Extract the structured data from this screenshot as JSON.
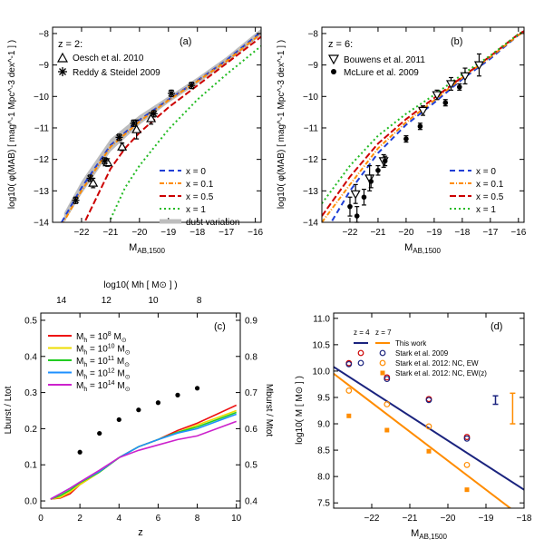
{
  "chart_data": [
    {
      "id": "a",
      "type": "line",
      "panel_label": "(a)",
      "redshift_label": "z = 2:",
      "xlabel_main": "M",
      "xlabel_sub": "AB,1500",
      "ylabel": "log10( φ(MAB) [ mag^-1 Mpc^-3 dex^-1 ] )",
      "xlim": [
        -23,
        -15.8
      ],
      "ylim": [
        -14,
        -7.8
      ],
      "x_ticks": [
        -22,
        -21,
        -20,
        -19,
        -18,
        -17,
        -16
      ],
      "y_ticks": [
        -14,
        -13,
        -12,
        -11,
        -10,
        -9,
        -8
      ],
      "legend_position": "bottom-right",
      "data_legend": [
        {
          "symbol": "triangle",
          "label": "Oesch et al. 2010"
        },
        {
          "symbol": "star",
          "label": "Reddy & Steidel 2009"
        }
      ],
      "series": [
        {
          "name": "x = 0",
          "color": "#1f3fd6",
          "dash": "dash",
          "x": [
            -23,
            -22,
            -21,
            -20,
            -19,
            -18,
            -17,
            -16,
            -15.8
          ],
          "y": [
            -14.5,
            -12.9,
            -11.55,
            -10.75,
            -10.1,
            -9.5,
            -8.85,
            -8.1,
            -7.95
          ]
        },
        {
          "name": "x = 0.1",
          "color": "#ff8c00",
          "dash": "dashdot",
          "x": [
            -23,
            -22,
            -21,
            -20,
            -19,
            -18,
            -17,
            -16,
            -15.8
          ],
          "y": [
            -14.6,
            -13.0,
            -11.6,
            -10.8,
            -10.12,
            -9.52,
            -8.88,
            -8.15,
            -8.0
          ]
        },
        {
          "name": "x = 0.5",
          "color": "#cc0000",
          "dash": "longdash",
          "x": [
            -22,
            -21,
            -20.5,
            -20,
            -19,
            -18,
            -17,
            -16,
            -15.8
          ],
          "y": [
            -14.2,
            -12.3,
            -11.65,
            -11.15,
            -10.35,
            -9.65,
            -8.95,
            -8.25,
            -8.1
          ]
        },
        {
          "name": "x = 1",
          "color": "#22bb22",
          "dash": "dot",
          "x": [
            -21,
            -20.5,
            -20,
            -19,
            -18,
            -17,
            -16,
            -15.8
          ],
          "y": [
            -13.9,
            -12.9,
            -12.2,
            -11.05,
            -10.1,
            -9.3,
            -8.55,
            -8.4
          ]
        },
        {
          "name": "dust variation",
          "color": "#bdbdbd",
          "dash": "band"
        }
      ],
      "band": {
        "x": [
          -22.6,
          -22,
          -21,
          -20,
          -19,
          -18,
          -17,
          -16,
          -15.8
        ],
        "lo": [
          -14.0,
          -13.1,
          -11.75,
          -10.9,
          -10.2,
          -9.6,
          -8.95,
          -8.2,
          -8.05
        ],
        "hi": [
          -13.7,
          -12.7,
          -11.35,
          -10.6,
          -10.0,
          -9.4,
          -8.75,
          -8.0,
          -7.85
        ]
      },
      "points": [
        {
          "set": "Oesch et al. 2010",
          "symbol": "triangle",
          "x": -21.6,
          "y": -12.75,
          "err": 0.15
        },
        {
          "set": "Oesch et al. 2010",
          "symbol": "triangle",
          "x": -21.1,
          "y": -12.1,
          "err": 0.12
        },
        {
          "set": "Oesch et al. 2010",
          "symbol": "triangle",
          "x": -20.6,
          "y": -11.6,
          "err": 0.12
        },
        {
          "set": "Oesch et al. 2010",
          "symbol": "triangle",
          "x": -20.1,
          "y": -11.05,
          "err": 0.3
        },
        {
          "set": "Oesch et al. 2010",
          "symbol": "triangle",
          "x": -19.6,
          "y": -10.7,
          "err": 0.18
        },
        {
          "set": "Reddy & Steidel 2009",
          "symbol": "star",
          "x": -22.2,
          "y": -13.3,
          "err": 0.1
        },
        {
          "set": "Reddy & Steidel 2009",
          "symbol": "star",
          "x": -21.7,
          "y": -12.6,
          "err": 0.1
        },
        {
          "set": "Reddy & Steidel 2009",
          "symbol": "star",
          "x": -21.2,
          "y": -12.05,
          "err": 0.1
        },
        {
          "set": "Reddy & Steidel 2009",
          "symbol": "star",
          "x": -20.7,
          "y": -11.3,
          "err": 0.1
        },
        {
          "set": "Reddy & Steidel 2009",
          "symbol": "star",
          "x": -20.2,
          "y": -10.85,
          "err": 0.1
        },
        {
          "set": "Reddy & Steidel 2009",
          "symbol": "star",
          "x": -19.5,
          "y": -10.55,
          "err": 0.1
        },
        {
          "set": "Reddy & Steidel 2009",
          "symbol": "star",
          "x": -18.9,
          "y": -9.9,
          "err": 0.1
        },
        {
          "set": "Reddy & Steidel 2009",
          "symbol": "star",
          "x": -18.2,
          "y": -9.65,
          "err": 0.1
        }
      ]
    },
    {
      "id": "b",
      "type": "line",
      "panel_label": "(b)",
      "redshift_label": "z = 6:",
      "xlabel_main": "M",
      "xlabel_sub": "AB,1500",
      "ylabel": "log10( φ(MAB) [ mag^-1 Mpc^-3 dex^-1 ] )",
      "xlim": [
        -23,
        -15.8
      ],
      "ylim": [
        -14,
        -7.8
      ],
      "x_ticks": [
        -22,
        -21,
        -20,
        -19,
        -18,
        -17,
        -16
      ],
      "y_ticks": [
        -14,
        -13,
        -12,
        -11,
        -10,
        -9,
        -8
      ],
      "legend_position": "bottom-right",
      "data_legend": [
        {
          "symbol": "triangle-down",
          "label": "Bouwens et al. 2011"
        },
        {
          "symbol": "dot",
          "label": "McLure et al. 2009"
        }
      ],
      "series": [
        {
          "name": "x = 0",
          "color": "#1f3fd6",
          "dash": "dash",
          "x": [
            -22.8,
            -22,
            -21,
            -20,
            -19,
            -18,
            -17,
            -16,
            -15.8
          ],
          "y": [
            -14.2,
            -13.0,
            -11.8,
            -10.9,
            -10.2,
            -9.45,
            -8.8,
            -8.05,
            -7.95
          ]
        },
        {
          "name": "x = 0.1",
          "color": "#ff8c00",
          "dash": "dashdot",
          "x": [
            -23,
            -22,
            -21,
            -20,
            -19,
            -18,
            -17,
            -16,
            -15.8
          ],
          "y": [
            -14.0,
            -12.8,
            -11.65,
            -10.82,
            -10.12,
            -9.4,
            -8.75,
            -8.05,
            -7.95
          ]
        },
        {
          "name": "x = 0.5",
          "color": "#cc0000",
          "dash": "longdash",
          "x": [
            -23,
            -22,
            -21,
            -20,
            -19,
            -18,
            -17,
            -16,
            -15.8
          ],
          "y": [
            -13.8,
            -12.55,
            -11.5,
            -10.72,
            -10.05,
            -9.38,
            -8.72,
            -8.02,
            -7.92
          ]
        },
        {
          "name": "x = 1",
          "color": "#22bb22",
          "dash": "dot",
          "x": [
            -23,
            -22,
            -21,
            -20,
            -19,
            -18,
            -17,
            -16,
            -15.8
          ],
          "y": [
            -13.4,
            -12.2,
            -11.25,
            -10.55,
            -9.95,
            -9.3,
            -8.7,
            -8.02,
            -7.92
          ]
        }
      ],
      "points": [
        {
          "set": "Bouwens et al. 2011",
          "symbol": "triangle-down",
          "x": -21.8,
          "y": -13.1,
          "err": 0.3
        },
        {
          "set": "Bouwens et al. 2011",
          "symbol": "triangle-down",
          "x": -21.3,
          "y": -12.6,
          "err": 0.4
        },
        {
          "set": "Bouwens et al. 2011",
          "symbol": "triangle-down",
          "x": -20.8,
          "y": -12.05,
          "err": 0.2
        },
        {
          "set": "Bouwens et al. 2011",
          "symbol": "triangle-down",
          "x": -19.4,
          "y": -10.45,
          "err": 0.15
        },
        {
          "set": "Bouwens et al. 2011",
          "symbol": "triangle-down",
          "x": -18.9,
          "y": -9.95,
          "err": 0.15
        },
        {
          "set": "Bouwens et al. 2011",
          "symbol": "triangle-down",
          "x": -18.4,
          "y": -9.6,
          "err": 0.2
        },
        {
          "set": "Bouwens et al. 2011",
          "symbol": "triangle-down",
          "x": -17.9,
          "y": -9.35,
          "err": 0.25
        },
        {
          "set": "Bouwens et al. 2011",
          "symbol": "triangle-down",
          "x": -17.4,
          "y": -9.0,
          "err": 0.35
        },
        {
          "set": "McLure et al. 2009",
          "symbol": "dot",
          "x": -22.0,
          "y": -13.5,
          "err": 0.3
        },
        {
          "set": "McLure et al. 2009",
          "symbol": "dot",
          "x": -21.75,
          "y": -13.8,
          "err": 0.3
        },
        {
          "set": "McLure et al. 2009",
          "symbol": "dot",
          "x": -21.5,
          "y": -13.2,
          "err": 0.25
        },
        {
          "set": "McLure et al. 2009",
          "symbol": "dot",
          "x": -21.25,
          "y": -12.7,
          "err": 0.2
        },
        {
          "set": "McLure et al. 2009",
          "symbol": "dot",
          "x": -21.0,
          "y": -12.35,
          "err": 0.15
        },
        {
          "set": "McLure et al. 2009",
          "symbol": "dot",
          "x": -20.75,
          "y": -12.05,
          "err": 0.15
        },
        {
          "set": "McLure et al. 2009",
          "symbol": "dot",
          "x": -20.0,
          "y": -11.35,
          "err": 0.1
        },
        {
          "set": "McLure et al. 2009",
          "symbol": "dot",
          "x": -19.5,
          "y": -10.95,
          "err": 0.1
        },
        {
          "set": "McLure et al. 2009",
          "symbol": "dot",
          "x": -18.6,
          "y": -10.2,
          "err": 0.1
        },
        {
          "set": "McLure et al. 2009",
          "symbol": "dot",
          "x": -18.1,
          "y": -9.7,
          "err": 0.1
        }
      ]
    },
    {
      "id": "c",
      "type": "line",
      "panel_label": "(c)",
      "xlabel": "z",
      "ylabel": "Lburst / Ltot",
      "y2label": "Mburst / Mtot",
      "top_axis_label": "log10( Mh [ M⊙ ] )",
      "xlim": [
        0,
        10.2
      ],
      "ylim": [
        -0.02,
        0.52
      ],
      "y2lim": [
        0.38,
        0.92
      ],
      "x_ticks": [
        0,
        2,
        4,
        6,
        8,
        10
      ],
      "y_ticks": [
        0.0,
        0.1,
        0.2,
        0.3,
        0.4,
        0.5
      ],
      "y2_ticks": [
        0.4,
        0.5,
        0.6,
        0.7,
        0.8,
        0.9
      ],
      "top_ticks": [
        {
          "label": "14",
          "z": 1.05
        },
        {
          "label": "12",
          "z": 3.35
        },
        {
          "label": "10",
          "z": 5.75
        },
        {
          "label": "8",
          "z": 8.1
        }
      ],
      "legend_position": "top-left",
      "series": [
        {
          "name": "Mh = 10^8 M⊙",
          "legend_main": "M",
          "legend_sub": "h",
          "legend_rest": " = 10",
          "legend_sup": "8",
          "color": "#ee1111",
          "x": [
            0.5,
            1,
            1.5,
            2,
            3,
            4,
            5,
            6,
            7,
            8,
            9,
            10
          ],
          "y": [
            0.005,
            0.008,
            0.02,
            0.045,
            0.08,
            0.12,
            0.15,
            0.17,
            0.195,
            0.215,
            0.24,
            0.265
          ]
        },
        {
          "name": "Mh = 10^10 M⊙",
          "legend_main": "M",
          "legend_sub": "h",
          "legend_rest": " = 10",
          "legend_sup": "10",
          "color": "#eedd00",
          "x": [
            0.5,
            1,
            1.5,
            2,
            3,
            4,
            5,
            6,
            7,
            8,
            9,
            10
          ],
          "y": [
            0.005,
            0.01,
            0.025,
            0.045,
            0.08,
            0.12,
            0.15,
            0.17,
            0.19,
            0.21,
            0.23,
            0.25
          ]
        },
        {
          "name": "Mh = 10^11 M⊙",
          "legend_main": "M",
          "legend_sub": "h",
          "legend_rest": " = 10",
          "legend_sup": "11",
          "color": "#22cc22",
          "x": [
            0.5,
            1,
            1.5,
            2,
            3,
            4,
            5,
            6,
            7,
            8,
            9,
            10
          ],
          "y": [
            0.005,
            0.015,
            0.03,
            0.05,
            0.08,
            0.12,
            0.15,
            0.17,
            0.19,
            0.205,
            0.225,
            0.245
          ]
        },
        {
          "name": "Mh = 10^12 M⊙",
          "legend_main": "M",
          "legend_sub": "h",
          "legend_rest": " = 10",
          "legend_sup": "12",
          "color": "#1e90ff",
          "x": [
            0.5,
            1,
            1.5,
            2,
            3,
            4,
            5,
            6,
            7,
            8,
            9,
            10
          ],
          "y": [
            0.005,
            0.02,
            0.035,
            0.052,
            0.082,
            0.12,
            0.15,
            0.17,
            0.188,
            0.2,
            0.22,
            0.24
          ]
        },
        {
          "name": "Mh = 10^14 M⊙",
          "legend_main": "M",
          "legend_sub": "h",
          "legend_rest": " = 10",
          "legend_sup": "14",
          "color": "#cc22cc",
          "x": [
            0.5,
            1,
            1.5,
            2,
            3,
            4,
            5,
            6,
            7,
            8,
            9,
            10
          ],
          "y": [
            0.005,
            0.02,
            0.035,
            0.052,
            0.085,
            0.12,
            0.14,
            0.155,
            0.17,
            0.18,
            0.2,
            0.22
          ]
        }
      ],
      "points_right_axis": {
        "x": [
          2,
          3,
          4,
          5,
          6,
          7,
          8
        ],
        "y": [
          0.535,
          0.587,
          0.625,
          0.652,
          0.672,
          0.693,
          0.712
        ]
      }
    },
    {
      "id": "d",
      "type": "line",
      "panel_label": "(d)",
      "xlabel_main": "M",
      "xlabel_sub": "AB,1500",
      "ylabel": "log10( M [ M⊙ ] )",
      "xlim": [
        -23,
        -18
      ],
      "ylim": [
        7.4,
        11.1
      ],
      "x_ticks": [
        -22,
        -21,
        -20,
        -19,
        -18
      ],
      "y_ticks": [
        7.5,
        8.0,
        8.5,
        9.0,
        9.5,
        10.0,
        10.5,
        11.0
      ],
      "legend_position": "top-left",
      "legend_header": [
        "z = 4",
        "z = 7"
      ],
      "legend_rows": [
        "This work",
        "Stark et al. 2009",
        "Stark et al. 2012: NC, EW",
        "Stark et al. 2012: NC, EW(z)"
      ],
      "lines": [
        {
          "name": "This work z = 4",
          "color": "#1a237e",
          "x": [
            -23,
            -18
          ],
          "y": [
            10.08,
            7.75
          ]
        },
        {
          "name": "This work z = 7",
          "color": "#ff8c00",
          "x": [
            -23,
            -18
          ],
          "y": [
            9.95,
            7.2
          ]
        }
      ],
      "points": [
        {
          "set": "Stark et al. 2009",
          "z": 4,
          "x": -22.6,
          "y": 10.15
        },
        {
          "set": "Stark et al. 2009",
          "z": 4,
          "x": -21.6,
          "y": 9.88
        },
        {
          "set": "Stark et al. 2009",
          "z": 4,
          "x": -20.5,
          "y": 9.47
        },
        {
          "set": "Stark et al. 2009",
          "z": 4,
          "x": -19.5,
          "y": 8.75
        },
        {
          "set": "Stark et al. 2009",
          "z": 7,
          "x": -22.6,
          "y": 10.13
        },
        {
          "set": "Stark et al. 2009",
          "z": 7,
          "x": -21.6,
          "y": 9.85
        },
        {
          "set": "Stark et al. 2009",
          "z": 7,
          "x": -20.5,
          "y": 9.45
        },
        {
          "set": "Stark et al. 2009",
          "z": 7,
          "x": -19.5,
          "y": 8.72
        },
        {
          "set": "Stark et al. 2012: NC, EW",
          "x": -22.6,
          "y": 9.63
        },
        {
          "set": "Stark et al. 2012: NC, EW",
          "x": -21.6,
          "y": 9.37
        },
        {
          "set": "Stark et al. 2012: NC, EW",
          "x": -20.5,
          "y": 8.95
        },
        {
          "set": "Stark et al. 2012: NC, EW",
          "x": -19.5,
          "y": 8.22
        },
        {
          "set": "Stark et al. 2012: NC, EW(z)",
          "x": -22.6,
          "y": 9.15
        },
        {
          "set": "Stark et al. 2012: NC, EW(z)",
          "x": -21.6,
          "y": 8.88
        },
        {
          "set": "Stark et al. 2012: NC, EW(z)",
          "x": -20.5,
          "y": 8.48
        },
        {
          "set": "Stark et al. 2012: NC, EW(z)",
          "x": -19.5,
          "y": 7.75
        }
      ],
      "error_bars": [
        {
          "color": "#1a237e",
          "x": -18.75,
          "y_lo": 9.37,
          "y_hi": 9.53
        },
        {
          "color": "#ff8c00",
          "x": -18.3,
          "y_lo": 9.0,
          "y_hi": 9.58
        }
      ],
      "colors": {
        "z4": "#1a237e",
        "z7": "#ff8c00",
        "stark2009_z4": "#cc0000",
        "stark2009_z7": "#1a237e"
      }
    }
  ]
}
